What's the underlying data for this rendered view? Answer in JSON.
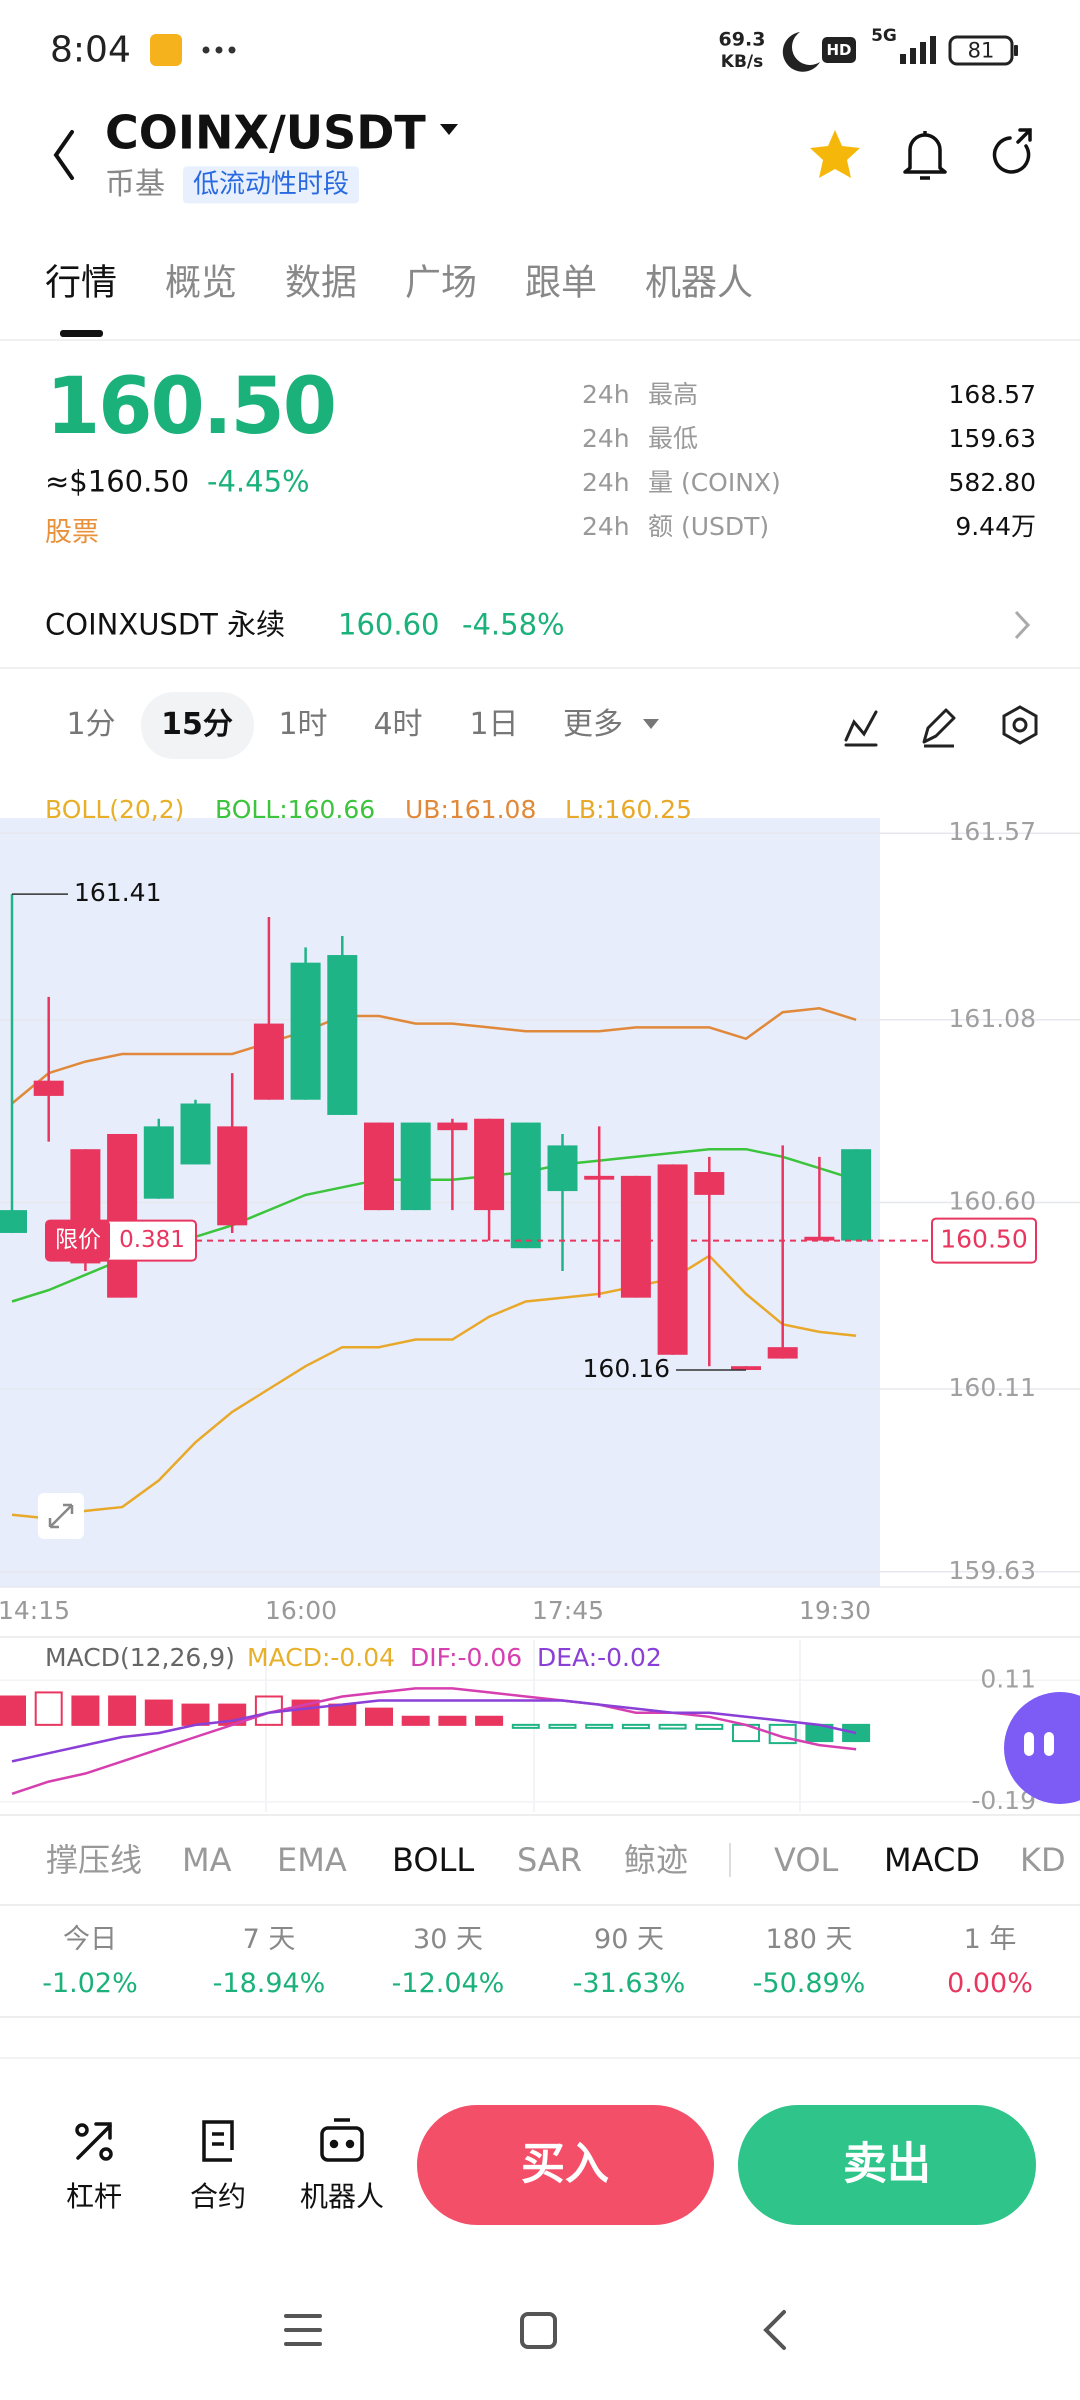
{
  "status_bar": {
    "time": "8:04",
    "speed_value": "69.3",
    "speed_unit": "KB/s",
    "hd": "HD",
    "network": "5G",
    "battery": "81"
  },
  "header": {
    "pair": "COINX/USDT",
    "category": "币基",
    "tag": "低流动性时段"
  },
  "tabs": [
    "行情",
    "概览",
    "数据",
    "广场",
    "跟单",
    "机器人"
  ],
  "ticker": {
    "price": "160.50",
    "usd": "≈$160.50",
    "change": "-4.45%",
    "tag": "股票",
    "stats": [
      {
        "period": "24h",
        "label": "最高",
        "value": "168.57"
      },
      {
        "period": "24h",
        "label": "最低",
        "value": "159.63"
      },
      {
        "period": "24h",
        "label": "量 (COINX)",
        "value": "582.80"
      },
      {
        "period": "24h",
        "label": "额 (USDT)",
        "value": "9.44万"
      }
    ]
  },
  "perpetual": {
    "name": "COINXUSDT 永续",
    "price": "160.60",
    "change": "-4.58%"
  },
  "intervals": [
    "1分",
    "15分",
    "1时",
    "4时",
    "1日",
    "更多"
  ],
  "chart_data": [
    {
      "type": "candlestick",
      "indicator": "BOLL(20,2)",
      "up_color": "#1fb486",
      "down_color": "#e8365e",
      "open": [
        160.52,
        160.92,
        160.74,
        160.78,
        160.61,
        160.7,
        160.8,
        161.07,
        160.87,
        160.83,
        160.81,
        160.58,
        160.81,
        160.82,
        160.48,
        160.63,
        160.67,
        160.67,
        160.7,
        160.68,
        160.17,
        160.22,
        160.51,
        160.5
      ],
      "high": [
        161.41,
        161.14,
        160.74,
        160.78,
        160.82,
        160.87,
        160.94,
        161.35,
        161.27,
        161.3,
        160.81,
        160.81,
        160.82,
        160.82,
        160.81,
        160.78,
        160.8,
        160.67,
        160.7,
        160.72,
        160.17,
        160.75,
        160.72,
        160.74
      ],
      "low": [
        160.52,
        160.76,
        160.42,
        160.35,
        160.61,
        160.7,
        160.52,
        160.87,
        160.87,
        160.83,
        160.58,
        160.58,
        160.58,
        160.5,
        160.48,
        160.42,
        160.35,
        160.35,
        160.2,
        160.17,
        160.16,
        160.19,
        160.5,
        160.5
      ],
      "close": [
        160.58,
        160.88,
        160.44,
        160.35,
        160.8,
        160.86,
        160.54,
        160.87,
        161.23,
        161.25,
        160.58,
        160.81,
        160.79,
        160.58,
        160.81,
        160.75,
        160.66,
        160.35,
        160.2,
        160.62,
        160.16,
        160.19,
        160.5,
        160.74
      ],
      "series": [
        {
          "name": "BOLL",
          "legend": "BOLL:160.66",
          "color": "#3cc43c",
          "values": [
            160.34,
            160.37,
            160.41,
            160.45,
            160.48,
            160.51,
            160.54,
            160.58,
            160.62,
            160.64,
            160.66,
            160.66,
            160.66,
            160.67,
            160.68,
            160.7,
            160.71,
            160.72,
            160.73,
            160.74,
            160.74,
            160.72,
            160.69,
            160.66
          ]
        },
        {
          "name": "UB",
          "legend": "UB:161.08",
          "color": "#e0893a",
          "values": [
            160.86,
            160.94,
            160.97,
            160.99,
            160.99,
            160.99,
            160.99,
            161.02,
            161.05,
            161.09,
            161.09,
            161.07,
            161.07,
            161.06,
            161.05,
            161.05,
            161.05,
            161.06,
            161.06,
            161.06,
            161.03,
            161.1,
            161.11,
            161.08
          ]
        },
        {
          "name": "LB",
          "legend": "LB:160.25",
          "color": "#e8a82a",
          "values": [
            159.78,
            159.77,
            159.79,
            159.8,
            159.87,
            159.97,
            160.05,
            160.11,
            160.17,
            160.22,
            160.22,
            160.24,
            160.24,
            160.3,
            160.34,
            160.35,
            160.36,
            160.38,
            160.4,
            160.46,
            160.36,
            160.28,
            160.26,
            160.25
          ]
        }
      ],
      "indicator_color": "#e8b02a",
      "high_marker": 161.41,
      "low_marker": 160.16,
      "current_price": {
        "value": 160.5,
        "label": "160.50"
      },
      "order_label": "限价",
      "order_value": "0.381",
      "ylim": [
        159.59,
        161.61
      ],
      "yticks": [
        161.57,
        161.08,
        {
          "value": 160.6,
          "label": "160.60"
        },
        160.11,
        159.63
      ],
      "x_labels": [
        "14:15",
        "16:00",
        "17:45",
        "19:30"
      ],
      "grid": true
    },
    {
      "type": "macd",
      "indicator": "MACD(12,26,9)",
      "up_color": "#e8365e",
      "down_color": "#1fb486",
      "series": [
        {
          "name": "MACD",
          "legend": "MACD:-0.04",
          "color": "#e8b02a",
          "values": [
            0.07,
            0.08,
            0.07,
            0.07,
            0.06,
            0.05,
            0.05,
            0.07,
            0.06,
            0.05,
            0.04,
            0.02,
            0.02,
            0.02,
            -0.005,
            -0.006,
            -0.007,
            -0.008,
            -0.009,
            -0.01,
            -0.04,
            -0.045,
            -0.04,
            -0.04
          ]
        },
        {
          "name": "DIF",
          "legend": "DIF:-0.06",
          "color": "#d63fb0",
          "values": [
            -0.17,
            -0.14,
            -0.12,
            -0.09,
            -0.06,
            -0.03,
            0.0,
            0.03,
            0.05,
            0.07,
            0.08,
            0.09,
            0.09,
            0.08,
            0.07,
            0.06,
            0.05,
            0.03,
            0.03,
            0.02,
            0.0,
            -0.03,
            -0.05,
            -0.06
          ]
        },
        {
          "name": "DEA",
          "legend": "DEA:-0.02",
          "color": "#8a3fd6",
          "values": [
            -0.09,
            -0.07,
            -0.05,
            -0.03,
            -0.02,
            0.0,
            0.01,
            0.03,
            0.04,
            0.05,
            0.06,
            0.06,
            0.06,
            0.06,
            0.06,
            0.06,
            0.05,
            0.04,
            0.03,
            0.03,
            0.02,
            0.01,
            0.0,
            -0.02
          ]
        }
      ],
      "indicator_color": "#666666",
      "ylim": [
        -0.21,
        0.16
      ],
      "yticks": [
        0.11,
        -0.19
      ]
    }
  ],
  "indicators": [
    "撑压线",
    "MA",
    "EMA",
    "BOLL",
    "SAR",
    "鲸迹",
    "VOL",
    "MACD",
    "KD"
  ],
  "performance": [
    {
      "period": "今日",
      "change": "-1.02%"
    },
    {
      "period": "7 天",
      "change": "-18.94%"
    },
    {
      "period": "30 天",
      "change": "-12.04%"
    },
    {
      "period": "90 天",
      "change": "-31.63%"
    },
    {
      "period": "180 天",
      "change": "-50.89%"
    },
    {
      "period": "1 年",
      "change": "0.00%"
    }
  ],
  "bottom_bar": {
    "tools": [
      "杠杆",
      "合约",
      "机器人"
    ],
    "buy": "买入",
    "sell": "卖出"
  }
}
